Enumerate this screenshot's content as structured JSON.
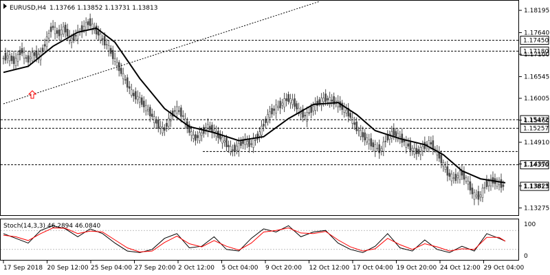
{
  "header": {
    "symbol": "EURUSD,H4",
    "ohlc": "1.13766 1.13852 1.13731 1.13813"
  },
  "indicator": {
    "label": "Stoch(14,3,3) 46.2894 46.0840",
    "levels": [
      "100",
      "0"
    ]
  },
  "price_axis": [
    "1.18195",
    "1.17640",
    "1.17100",
    "1.16545",
    "1.16005",
    "1.15460",
    "1.14910",
    "1.14370",
    "1.13825",
    "1.13275"
  ],
  "levels": [
    {
      "label": "1.17450",
      "value": 1.1745
    },
    {
      "label": "1.17180",
      "value": 1.1718
    },
    {
      "label": "1.15472",
      "value": 1.15472
    },
    {
      "label": "1.15257",
      "value": 1.15257
    },
    {
      "label": "1.14350",
      "value": 1.1435
    }
  ],
  "current_price": "1.13813",
  "time_axis": [
    "17 Sep 2018",
    "20 Sep 12:00",
    "25 Sep 04:00",
    "27 Sep 20:00",
    "2 Oct 12:00",
    "5 Oct 04:00",
    "9 Oct 20:00",
    "12 Oct 12:00",
    "17 Oct 04:00",
    "19 Oct 20:00",
    "24 Oct 12:00",
    "29 Oct 04:00"
  ],
  "colors": {
    "candle": "#4a4a4a",
    "ma": "#000000",
    "stoch_main": "#000000",
    "stoch_signal": "#ff0000",
    "arrow": "#ff0000",
    "grid_dash": "#000000"
  },
  "chart_data": {
    "type": "line",
    "series": [],
    "path": [
      [
        0,
        1.17
      ],
      [
        3,
        1.1705
      ],
      [
        6,
        1.169
      ],
      [
        9,
        1.172
      ],
      [
        12,
        1.1695
      ],
      [
        15,
        1.171
      ],
      [
        18,
        1.1705
      ],
      [
        21,
        1.174
      ],
      [
        24,
        1.178
      ],
      [
        27,
        1.176
      ],
      [
        30,
        1.1775
      ],
      [
        33,
        1.1745
      ],
      [
        36,
        1.176
      ],
      [
        39,
        1.1775
      ],
      [
        42,
        1.179
      ],
      [
        45,
        1.177
      ],
      [
        48,
        1.175
      ],
      [
        51,
        1.173
      ],
      [
        54,
        1.17
      ],
      [
        57,
        1.167
      ],
      [
        60,
        1.164
      ],
      [
        63,
        1.161
      ],
      [
        66,
        1.16
      ],
      [
        69,
        1.158
      ],
      [
        72,
        1.156
      ],
      [
        75,
        1.1535
      ],
      [
        78,
        1.152
      ],
      [
        81,
        1.155
      ],
      [
        84,
        1.1575
      ],
      [
        87,
        1.156
      ],
      [
        90,
        1.1525
      ],
      [
        93,
        1.15
      ],
      [
        96,
        1.151
      ],
      [
        99,
        1.153
      ],
      [
        102,
        1.152
      ],
      [
        105,
        1.1505
      ],
      [
        108,
        1.149
      ],
      [
        111,
        1.147
      ],
      [
        114,
        1.148
      ],
      [
        117,
        1.1495
      ],
      [
        120,
        1.1485
      ],
      [
        123,
        1.15
      ],
      [
        126,
        1.153
      ],
      [
        129,
        1.156
      ],
      [
        132,
        1.1575
      ],
      [
        135,
        1.1585
      ],
      [
        138,
        1.16
      ],
      [
        141,
        1.159
      ],
      [
        144,
        1.1565
      ],
      [
        147,
        1.1555
      ],
      [
        150,
        1.1575
      ],
      [
        153,
        1.159
      ],
      [
        156,
        1.16
      ],
      [
        159,
        1.1595
      ],
      [
        162,
        1.159
      ],
      [
        165,
        1.1575
      ],
      [
        168,
        1.156
      ],
      [
        171,
        1.153
      ],
      [
        174,
        1.151
      ],
      [
        177,
        1.1495
      ],
      [
        180,
        1.148
      ],
      [
        183,
        1.147
      ],
      [
        186,
        1.15
      ],
      [
        189,
        1.1515
      ],
      [
        192,
        1.1505
      ],
      [
        195,
        1.149
      ],
      [
        198,
        1.1475
      ],
      [
        201,
        1.1465
      ],
      [
        204,
        1.148
      ],
      [
        207,
        1.149
      ],
      [
        210,
        1.147
      ],
      [
        213,
        1.144
      ],
      [
        216,
        1.141
      ],
      [
        219,
        1.14
      ],
      [
        222,
        1.1415
      ],
      [
        225,
        1.1395
      ],
      [
        228,
        1.136
      ],
      [
        231,
        1.1355
      ],
      [
        234,
        1.1385
      ],
      [
        237,
        1.1395
      ],
      [
        240,
        1.139
      ],
      [
        243,
        1.138
      ]
    ],
    "moving_average": [
      [
        0,
        1.1665
      ],
      [
        12,
        1.168
      ],
      [
        24,
        1.173
      ],
      [
        36,
        1.1765
      ],
      [
        45,
        1.1775
      ],
      [
        54,
        1.174
      ],
      [
        66,
        1.165
      ],
      [
        78,
        1.1575
      ],
      [
        90,
        1.153
      ],
      [
        102,
        1.1515
      ],
      [
        114,
        1.1495
      ],
      [
        126,
        1.1505
      ],
      [
        138,
        1.155
      ],
      [
        150,
        1.1585
      ],
      [
        162,
        1.159
      ],
      [
        171,
        1.156
      ],
      [
        180,
        1.152
      ],
      [
        192,
        1.15
      ],
      [
        204,
        1.1485
      ],
      [
        213,
        1.146
      ],
      [
        222,
        1.142
      ],
      [
        231,
        1.14
      ],
      [
        243,
        1.139
      ]
    ],
    "stoch_main": [
      [
        0,
        70
      ],
      [
        6,
        55
      ],
      [
        12,
        40
      ],
      [
        18,
        80
      ],
      [
        24,
        95
      ],
      [
        30,
        85
      ],
      [
        36,
        60
      ],
      [
        42,
        85
      ],
      [
        48,
        70
      ],
      [
        54,
        40
      ],
      [
        60,
        15
      ],
      [
        66,
        10
      ],
      [
        72,
        20
      ],
      [
        78,
        55
      ],
      [
        84,
        70
      ],
      [
        90,
        25
      ],
      [
        96,
        30
      ],
      [
        102,
        60
      ],
      [
        108,
        20
      ],
      [
        114,
        15
      ],
      [
        120,
        55
      ],
      [
        126,
        85
      ],
      [
        132,
        75
      ],
      [
        138,
        95
      ],
      [
        144,
        60
      ],
      [
        150,
        75
      ],
      [
        156,
        80
      ],
      [
        162,
        40
      ],
      [
        168,
        20
      ],
      [
        174,
        10
      ],
      [
        180,
        30
      ],
      [
        186,
        70
      ],
      [
        192,
        25
      ],
      [
        198,
        15
      ],
      [
        204,
        50
      ],
      [
        210,
        20
      ],
      [
        216,
        10
      ],
      [
        222,
        30
      ],
      [
        228,
        15
      ],
      [
        234,
        70
      ],
      [
        240,
        55
      ],
      [
        243,
        46
      ]
    ],
    "stoch_signal": [
      [
        0,
        65
      ],
      [
        6,
        60
      ],
      [
        12,
        48
      ],
      [
        18,
        70
      ],
      [
        24,
        88
      ],
      [
        30,
        87
      ],
      [
        36,
        70
      ],
      [
        42,
        78
      ],
      [
        48,
        75
      ],
      [
        54,
        50
      ],
      [
        60,
        25
      ],
      [
        66,
        12
      ],
      [
        72,
        15
      ],
      [
        78,
        42
      ],
      [
        84,
        62
      ],
      [
        90,
        38
      ],
      [
        96,
        28
      ],
      [
        102,
        48
      ],
      [
        108,
        30
      ],
      [
        114,
        18
      ],
      [
        120,
        40
      ],
      [
        126,
        75
      ],
      [
        132,
        80
      ],
      [
        138,
        88
      ],
      [
        144,
        72
      ],
      [
        150,
        70
      ],
      [
        156,
        77
      ],
      [
        162,
        50
      ],
      [
        168,
        28
      ],
      [
        174,
        15
      ],
      [
        180,
        22
      ],
      [
        186,
        55
      ],
      [
        192,
        35
      ],
      [
        198,
        20
      ],
      [
        204,
        38
      ],
      [
        210,
        28
      ],
      [
        216,
        15
      ],
      [
        222,
        22
      ],
      [
        228,
        20
      ],
      [
        234,
        58
      ],
      [
        240,
        58
      ],
      [
        243,
        46
      ]
    ]
  }
}
